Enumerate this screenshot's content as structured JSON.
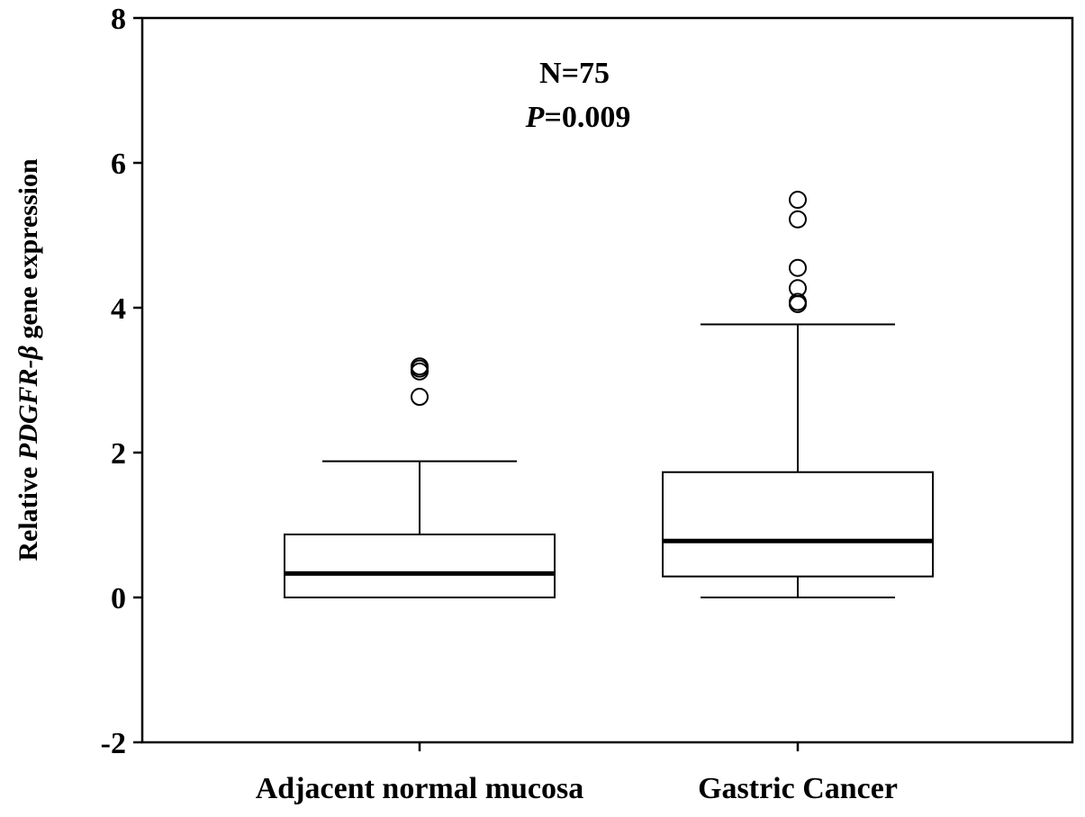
{
  "chart_data": {
    "type": "box",
    "annotation": {
      "n_text": "N=75",
      "p_italic": "P",
      "p_rest": "=0.009"
    },
    "ylabel": {
      "before": "Relative ",
      "gene": "PDGFR-β",
      "after": " gene expression"
    },
    "ylim": [
      -2,
      8
    ],
    "yticks": [
      -2,
      0,
      2,
      4,
      6,
      8
    ],
    "categories": [
      "Adjacent normal mucosa",
      "Gastric Cancer"
    ],
    "boxes": [
      {
        "category": "Adjacent normal mucosa",
        "min": 0.0,
        "q1": 0.0,
        "median": 0.33,
        "q3": 0.87,
        "max": 1.88,
        "outliers": [
          2.77,
          3.12,
          3.16,
          3.19
        ]
      },
      {
        "category": "Gastric Cancer",
        "min": 0.0,
        "q1": 0.29,
        "median": 0.78,
        "q3": 1.73,
        "max": 3.77,
        "outliers": [
          4.05,
          4.08,
          4.27,
          4.55,
          5.22,
          5.49
        ]
      }
    ],
    "colors": {
      "line": "#000000",
      "background": "#ffffff"
    },
    "grid": false
  }
}
